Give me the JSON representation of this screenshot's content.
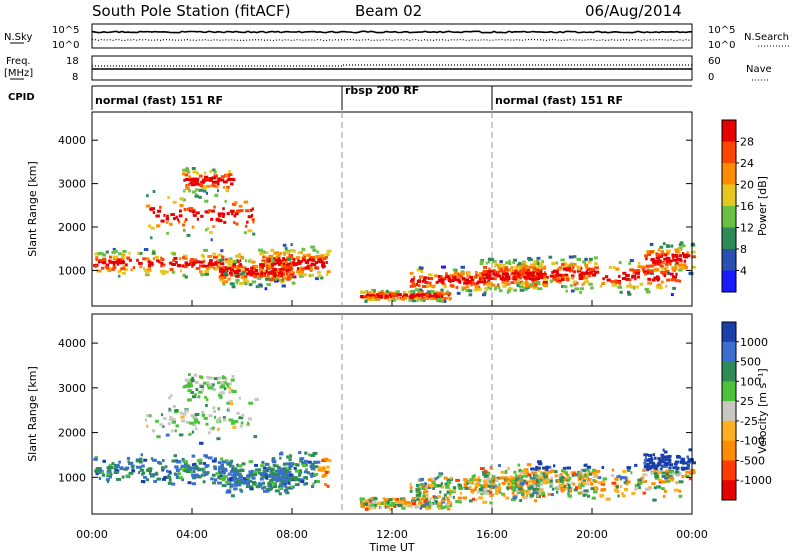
{
  "header": {
    "station": "South Pole Station (fitACF)",
    "beam": "Beam 02",
    "date": "06/Aug/2014"
  },
  "strip_labels": {
    "nsky": "N.Sky",
    "freq_line1": "Freq.",
    "freq_line2": "[MHz]",
    "cpid": "CPID",
    "nsearch": "N.Search",
    "nave": "Nave",
    "nsky_ticks": [
      "10^5",
      "10^0"
    ],
    "freq_ticks": [
      "18",
      "8"
    ],
    "nsearch_ticks": [
      "10^5",
      "10^0"
    ],
    "nave_ticks": [
      "60",
      "0"
    ]
  },
  "cpid_segments": [
    {
      "label": "normal (fast) 151 RF",
      "start_hour": 0
    },
    {
      "label": "rbsp 200 RF",
      "start_hour": 10
    },
    {
      "label": "normal (fast) 151 RF",
      "start_hour": 16
    }
  ],
  "chart_data": [
    {
      "type": "heatmap",
      "name": "power",
      "xlabel": "Time UT",
      "ylabel": "Slant Range [km]",
      "xlim": [
        0,
        24
      ],
      "ylim": [
        180,
        4650
      ],
      "x_ticks": [
        "00:00",
        "04:00",
        "08:00",
        "12:00",
        "16:00",
        "20:00",
        "00:00"
      ],
      "y_ticks": [
        1000,
        2000,
        3000,
        4000
      ],
      "colorbar_label": "Power [dB]",
      "colorbar_ticks": [
        "4",
        "8",
        "12",
        "16",
        "20",
        "24",
        "28"
      ],
      "colorbar_colors": [
        "#1a1aff",
        "#2a50b0",
        "#2e8b57",
        "#6abf45",
        "#e6c620",
        "#ff8c00",
        "#ff4500",
        "#e60000"
      ]
    },
    {
      "type": "heatmap",
      "name": "velocity",
      "xlabel": "Time UT",
      "ylabel": "Slant Range [km]",
      "xlim": [
        0,
        24
      ],
      "ylim": [
        180,
        4650
      ],
      "x_ticks": [
        "00:00",
        "04:00",
        "08:00",
        "12:00",
        "16:00",
        "20:00",
        "00:00"
      ],
      "y_ticks": [
        1000,
        2000,
        3000,
        4000
      ],
      "colorbar_label": "Velocity [m s⁻¹]",
      "colorbar_ticks": [
        "1000",
        "500",
        "100",
        "25",
        "-25",
        "-100",
        "-500",
        "-1000"
      ],
      "colorbar_colors": [
        "#1a3fa8",
        "#3a6fd0",
        "#2e8b57",
        "#4cc23a",
        "#c8c8c0",
        "#ffb020",
        "#ff8c00",
        "#ff3b00",
        "#e60000"
      ]
    }
  ],
  "bottom_axis_label": "Time UT"
}
